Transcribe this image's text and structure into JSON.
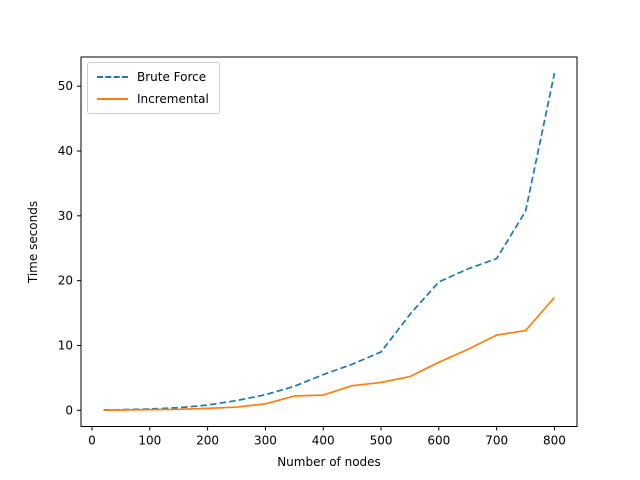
{
  "chart_data": {
    "type": "line",
    "title": "",
    "xlabel": "Number of nodes",
    "ylabel": "Time seconds",
    "x": [
      20,
      50,
      100,
      150,
      200,
      250,
      300,
      350,
      400,
      450,
      500,
      550,
      600,
      650,
      700,
      750,
      800
    ],
    "series": [
      {
        "name": "Brute Force",
        "color": "#1f77b4",
        "style": "dashed",
        "values": [
          0.05,
          0.1,
          0.2,
          0.4,
          0.8,
          1.5,
          2.4,
          3.7,
          5.5,
          7.1,
          9.0,
          14.8,
          19.8,
          21.8,
          23.4,
          30.7,
          52.0
        ]
      },
      {
        "name": "Incremental",
        "color": "#ff7f0e",
        "style": "solid",
        "values": [
          0.03,
          0.05,
          0.1,
          0.15,
          0.3,
          0.5,
          1.0,
          2.2,
          2.35,
          3.8,
          4.3,
          5.2,
          7.4,
          9.4,
          11.6,
          12.3,
          17.4
        ]
      }
    ],
    "xticks": [
      0,
      100,
      200,
      300,
      400,
      500,
      600,
      700,
      800
    ],
    "yticks": [
      0,
      10,
      20,
      30,
      40,
      50
    ],
    "xlim": [
      -19,
      839
    ],
    "ylim": [
      -2.5,
      54.5
    ],
    "grid": false,
    "legend_position": "upper left",
    "axis_color": "#000000",
    "background_color": "#ffffff"
  }
}
